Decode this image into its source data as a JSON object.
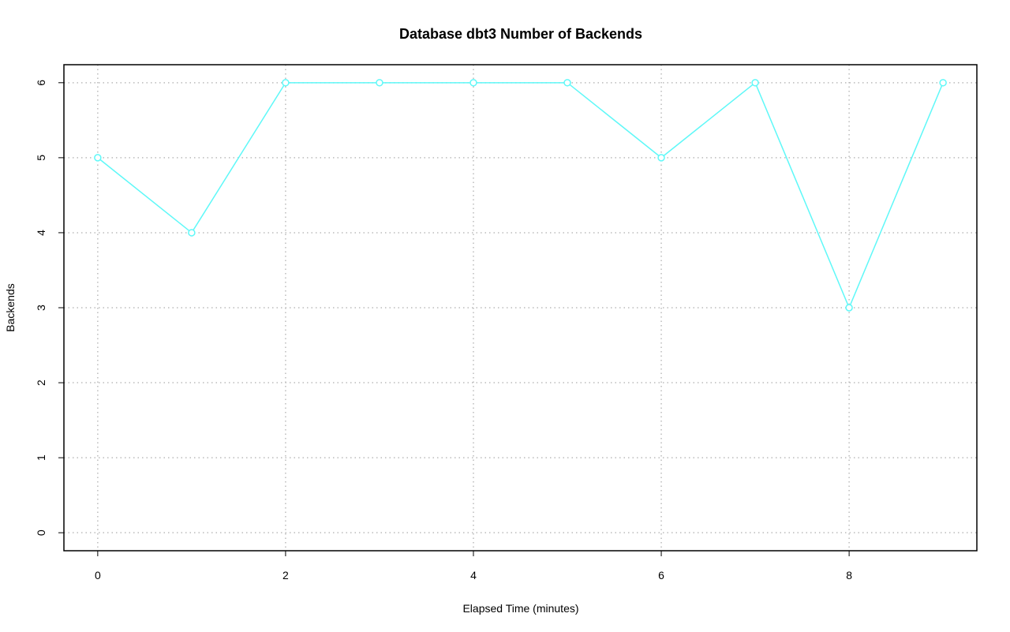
{
  "chart_data": {
    "type": "line",
    "title": "Database dbt3 Number of Backends",
    "xlabel": "Elapsed Time (minutes)",
    "ylabel": "Backends",
    "x": [
      0,
      1,
      2,
      3,
      4,
      5,
      6,
      7,
      8,
      9
    ],
    "values": [
      5,
      4,
      6,
      6,
      6,
      6,
      5,
      6,
      3,
      6
    ],
    "color": "#5ff8f8",
    "xlim": [
      -0.36,
      9.36
    ],
    "xticks": [
      0,
      2,
      4,
      6,
      8
    ],
    "ylim": [
      -0.24,
      6.24
    ],
    "yticks": [
      0,
      1,
      2,
      3,
      4,
      5,
      6
    ],
    "grid": true
  }
}
